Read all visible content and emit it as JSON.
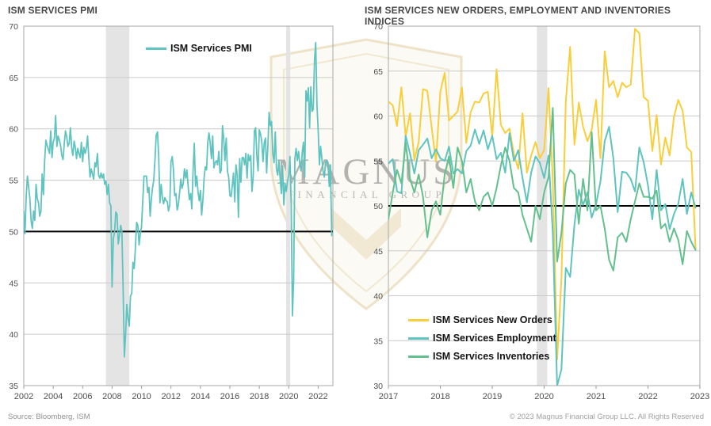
{
  "footer": {
    "source": "Source: Bloomberg, ISM",
    "copyright": "© 2023 Magnus Financial Group LLC. All Rights Reserved"
  },
  "watermark": {
    "name": "MAGNUS",
    "subtitle": "FINANCIAL GROUP",
    "shield_color": "#eee3c8",
    "text_color": "#9e9e9e"
  },
  "colors": {
    "teal": "#5fc4bf",
    "yellow": "#f9ce3b",
    "green": "#63c08e",
    "gridline": "#c9c9c9",
    "plot_border": "#a9a9a9",
    "recession_band": "#e4e4e4",
    "reference_line": "#000000"
  },
  "chart_data": [
    {
      "type": "line",
      "title": "ISM SERVICES PMI",
      "xlabel": "",
      "ylabel": "",
      "x_unit": "monthly",
      "x_start_year": 2002,
      "x_end_label": "2022-12",
      "xlim": [
        2002,
        2023
      ],
      "ylim": [
        35,
        70
      ],
      "xticks": [
        2002,
        2004,
        2006,
        2008,
        2010,
        2012,
        2014,
        2016,
        2018,
        2020,
        2022
      ],
      "yticks": [
        35,
        40,
        45,
        50,
        55,
        60,
        65,
        70
      ],
      "grid": "horizontal",
      "legend_position": "inside-top-center",
      "reference_line": 50,
      "recession_bands": [
        [
          2007.58,
          2009.17
        ],
        [
          2019.82,
          2020.1
        ]
      ],
      "series": [
        {
          "name": "ISM Services PMI",
          "color": "#5fc4bf",
          "values": [
            52.0,
            49.8,
            53.5,
            55.4,
            54.3,
            53.2,
            51.0,
            50.3,
            52.0,
            51.1,
            54.6,
            53.2,
            52.8,
            51.5,
            52.0,
            55.6,
            53.6,
            56.9,
            58.9,
            58.4,
            58.0,
            57.6,
            59.8,
            57.2,
            58.7,
            59.1,
            61.3,
            58.3,
            59.3,
            58.9,
            58.4,
            57.4,
            57.0,
            58.6,
            59.8,
            59.2,
            58.3,
            58.6,
            60.1,
            58.2,
            57.4,
            58.8,
            58.2,
            57.1,
            58.1,
            57.6,
            57.2,
            58.7,
            56.8,
            58.2,
            57.6,
            58.1,
            59.3,
            57.2,
            55.3,
            56.1,
            55.6,
            55.1,
            56.7,
            56.3,
            57.6,
            55.5,
            55.2,
            55.7,
            55.2,
            55.6,
            54.6,
            54.9,
            53.6,
            54.6,
            52.8,
            52.5,
            44.6,
            49.3,
            49.9,
            51.9,
            51.7,
            48.8,
            49.6,
            50.6,
            50.0,
            44.2,
            37.8,
            40.1,
            42.9,
            41.6,
            40.8,
            43.7,
            44.0,
            47.0,
            46.4,
            48.4,
            50.9,
            50.6,
            48.7,
            49.8,
            50.5,
            53.0,
            55.4,
            55.4,
            55.4,
            53.8,
            54.3,
            51.5,
            53.2,
            54.3,
            55.0,
            57.1,
            59.4,
            59.7,
            57.3,
            52.8,
            54.6,
            53.3,
            52.7,
            53.3,
            53.0,
            52.9,
            52.0,
            52.6,
            56.8,
            57.3,
            56.0,
            53.5,
            53.7,
            52.1,
            52.6,
            53.7,
            55.1,
            54.2,
            54.7,
            56.1,
            55.2,
            56.0,
            54.4,
            53.1,
            53.7,
            52.2,
            56.0,
            58.6,
            54.4,
            55.4,
            53.9,
            53.0,
            54.0,
            51.6,
            53.1,
            55.2,
            56.3,
            56.0,
            58.7,
            59.6,
            58.6,
            57.1,
            59.3,
            56.2,
            56.7,
            56.9,
            56.5,
            57.8,
            55.7,
            56.0,
            60.3,
            59.0,
            56.9,
            59.1,
            55.9,
            55.3,
            53.5,
            53.4,
            54.5,
            55.7,
            52.9,
            56.5,
            55.5,
            51.4,
            57.1,
            54.8,
            57.2,
            57.2,
            56.5,
            57.6,
            55.2,
            57.5,
            56.9,
            57.4,
            53.9,
            55.3,
            59.8,
            60.1,
            57.4,
            55.9,
            59.9,
            59.5,
            58.8,
            56.8,
            58.6,
            59.1,
            55.7,
            58.5,
            61.6,
            60.3,
            60.7,
            57.6,
            56.7,
            59.7,
            56.1,
            55.5,
            56.9,
            55.1,
            53.7,
            56.4,
            52.6,
            54.7,
            53.9,
            54.9,
            55.5,
            57.3,
            52.5,
            41.8,
            45.4,
            57.1,
            58.1,
            56.9,
            57.8,
            56.6,
            55.9,
            57.7,
            58.7,
            55.3,
            63.7,
            62.7,
            64.0,
            60.1,
            64.1,
            61.7,
            61.9,
            66.7,
            68.4,
            62.3,
            59.9,
            56.5,
            58.3,
            57.1,
            55.9,
            55.3,
            56.7,
            56.9,
            56.7,
            54.4,
            56.5,
            49.6
          ]
        }
      ]
    },
    {
      "type": "line",
      "title": "ISM SERVICES NEW ORDERS, EMPLOYMENT AND INVENTORIES INDICES",
      "xlabel": "",
      "ylabel": "",
      "x_unit": "monthly",
      "x_start_year": 2017,
      "x_end_label": "2022-12",
      "xlim": [
        2017,
        2023
      ],
      "ylim": [
        30,
        70
      ],
      "xticks": [
        2017,
        2018,
        2019,
        2020,
        2021,
        2022,
        2023
      ],
      "yticks": [
        30,
        35,
        40,
        45,
        50,
        55,
        60,
        65,
        70
      ],
      "grid": "horizontal",
      "legend_position": "inside-bottom-left",
      "reference_line": 50,
      "recession_bands": [
        [
          2019.86,
          2020.06
        ]
      ],
      "series": [
        {
          "name": "ISM Services New Orders",
          "color": "#f9ce3b",
          "values": [
            61.6,
            61.2,
            58.9,
            63.2,
            57.7,
            60.3,
            55.1,
            57.1,
            63.0,
            62.8,
            58.7,
            54.9,
            62.7,
            64.8,
            59.5,
            60.0,
            60.5,
            63.2,
            57.0,
            60.4,
            61.6,
            61.5,
            62.5,
            62.7,
            57.7,
            65.2,
            59.0,
            58.1,
            58.6,
            55.8,
            54.1,
            60.3,
            53.7,
            55.6,
            57.1,
            55.3,
            56.2,
            63.1,
            52.9,
            32.9,
            41.9,
            61.6,
            67.7,
            56.8,
            61.5,
            58.8,
            57.2,
            58.5,
            61.8,
            55.3,
            67.2,
            63.2,
            63.9,
            62.1,
            63.7,
            63.2,
            63.5,
            69.7,
            69.2,
            62.1,
            61.7,
            56.1,
            60.1,
            54.6,
            57.6,
            55.6,
            59.9,
            61.8,
            60.6,
            56.5,
            56.0,
            45.2
          ]
        },
        {
          "name": "ISM Services Employment",
          "color": "#5fc4bf",
          "values": [
            54.7,
            55.2,
            51.6,
            51.4,
            57.8,
            55.8,
            53.6,
            56.2,
            56.8,
            57.5,
            55.3,
            56.3,
            55.3,
            55.0,
            56.6,
            53.6,
            54.1,
            53.6,
            56.1,
            56.7,
            58.5,
            56.9,
            58.4,
            56.3,
            57.8,
            55.2,
            55.9,
            53.7,
            58.1,
            55.0,
            56.2,
            53.1,
            50.4,
            53.7,
            55.5,
            54.8,
            53.1,
            55.6,
            47.0,
            30.0,
            31.8,
            43.1,
            42.1,
            47.9,
            51.8,
            50.1,
            51.5,
            48.7,
            50.2,
            52.7,
            57.2,
            58.8,
            55.3,
            49.3,
            53.8,
            53.7,
            53.0,
            51.6,
            56.5,
            54.9,
            52.3,
            48.5,
            54.0,
            49.5,
            50.2,
            47.4,
            49.1,
            50.2,
            53.0,
            49.1,
            51.5,
            49.8
          ]
        },
        {
          "name": "ISM Services Inventories",
          "color": "#63c08e",
          "values": [
            48.5,
            51.5,
            54.0,
            52.5,
            57.0,
            53.0,
            51.5,
            53.5,
            51.0,
            46.5,
            49.5,
            50.5,
            49.0,
            53.5,
            55.5,
            52.0,
            56.5,
            55.0,
            51.5,
            53.0,
            50.5,
            49.5,
            51.0,
            51.5,
            50.0,
            52.0,
            54.5,
            56.5,
            55.0,
            52.0,
            51.5,
            49.0,
            47.5,
            46.0,
            50.0,
            48.5,
            51.5,
            53.2,
            60.9,
            43.8,
            47.0,
            52.5,
            54.0,
            53.5,
            48.0,
            53.0,
            49.5,
            58.2,
            49.5,
            50.0,
            47.5,
            44.0,
            42.8,
            46.5,
            47.0,
            46.0,
            48.5,
            50.5,
            52.5,
            51.0,
            51.0,
            50.8,
            51.7,
            47.5,
            48.0,
            46.0,
            47.5,
            46.2,
            43.5,
            47.2,
            46.0,
            45.1
          ]
        }
      ]
    }
  ]
}
